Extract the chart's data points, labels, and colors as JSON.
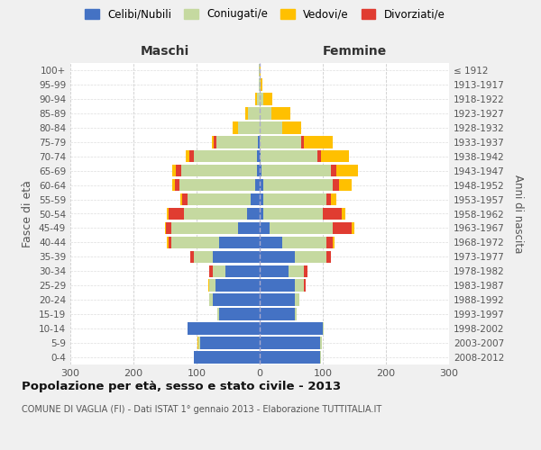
{
  "age_groups": [
    "0-4",
    "5-9",
    "10-14",
    "15-19",
    "20-24",
    "25-29",
    "30-34",
    "35-39",
    "40-44",
    "45-49",
    "50-54",
    "55-59",
    "60-64",
    "65-69",
    "70-74",
    "75-79",
    "80-84",
    "85-89",
    "90-94",
    "95-99",
    "100+"
  ],
  "birth_years": [
    "2008-2012",
    "2003-2007",
    "1998-2002",
    "1993-1997",
    "1988-1992",
    "1983-1987",
    "1978-1982",
    "1973-1977",
    "1968-1972",
    "1963-1967",
    "1958-1962",
    "1953-1957",
    "1948-1952",
    "1943-1947",
    "1938-1942",
    "1933-1937",
    "1928-1932",
    "1923-1927",
    "1918-1922",
    "1913-1917",
    "≤ 1912"
  ],
  "males": {
    "celibi": [
      105,
      95,
      115,
      65,
      75,
      70,
      55,
      75,
      65,
      35,
      20,
      15,
      7,
      5,
      4,
      3,
      0,
      0,
      0,
      0,
      0
    ],
    "coniugati": [
      0,
      2,
      0,
      2,
      5,
      10,
      20,
      30,
      75,
      105,
      100,
      100,
      120,
      120,
      100,
      65,
      35,
      18,
      5,
      2,
      1
    ],
    "vedovi": [
      0,
      2,
      0,
      0,
      0,
      2,
      0,
      0,
      2,
      2,
      2,
      3,
      3,
      5,
      5,
      3,
      8,
      5,
      2,
      0,
      0
    ],
    "divorziati": [
      0,
      0,
      0,
      0,
      0,
      0,
      5,
      5,
      5,
      8,
      25,
      8,
      8,
      8,
      8,
      5,
      0,
      0,
      0,
      0,
      0
    ]
  },
  "females": {
    "nubili": [
      95,
      95,
      100,
      55,
      55,
      55,
      45,
      55,
      35,
      15,
      5,
      5,
      5,
      3,
      2,
      0,
      0,
      0,
      0,
      0,
      0
    ],
    "coniugate": [
      2,
      3,
      2,
      3,
      8,
      15,
      25,
      50,
      70,
      100,
      95,
      100,
      110,
      110,
      90,
      65,
      35,
      18,
      5,
      2,
      0
    ],
    "vedove": [
      0,
      0,
      0,
      0,
      0,
      0,
      0,
      0,
      3,
      5,
      5,
      8,
      20,
      35,
      45,
      45,
      30,
      30,
      15,
      2,
      2
    ],
    "divorziate": [
      0,
      0,
      0,
      0,
      0,
      3,
      5,
      8,
      10,
      30,
      30,
      8,
      10,
      8,
      5,
      5,
      0,
      0,
      0,
      0,
      0
    ]
  },
  "color_celibi": "#4472c4",
  "color_coniugati": "#c5d9a0",
  "color_vedovi": "#ffc000",
  "color_divorziati": "#e03c31",
  "xlim": 300,
  "title": "Popolazione per età, sesso e stato civile - 2013",
  "subtitle": "COMUNE DI VAGLIA (FI) - Dati ISTAT 1° gennaio 2013 - Elaborazione TUTTITALIA.IT",
  "ylabel": "Fasce di età",
  "ylabel_right": "Anni di nascita",
  "xlabel_maschi": "Maschi",
  "xlabel_femmine": "Femmine",
  "legend_labels": [
    "Celibi/Nubili",
    "Coniugati/e",
    "Vedovi/e",
    "Divorziati/e"
  ],
  "bg_color": "#f0f0f0",
  "plot_bg": "#ffffff"
}
